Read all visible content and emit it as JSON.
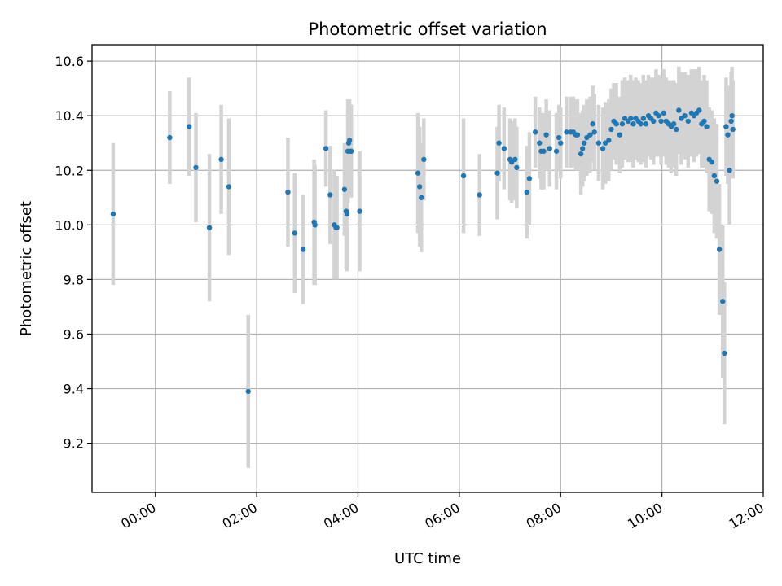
{
  "chart_data": {
    "type": "scatter",
    "title": "Photometric offset variation",
    "xlabel": "UTC time",
    "ylabel": "Photometric offset",
    "x_unit": "hours UTC",
    "xlim": [
      "-01:15",
      "12:00"
    ],
    "ylim": [
      9.02,
      10.66
    ],
    "x_ticks": [
      "00:00",
      "02:00",
      "04:00",
      "06:00",
      "08:00",
      "10:00",
      "12:00"
    ],
    "y_ticks": [
      "9.2",
      "9.4",
      "9.6",
      "9.8",
      "10.0",
      "10.2",
      "10.4",
      "10.6"
    ],
    "grid": true,
    "colors": {
      "points": "#1f77b4",
      "errorbars": "#d3d3d3"
    },
    "series": [
      {
        "x": [
          "-00:50",
          "00:17",
          "00:40",
          "00:48",
          "01:04",
          "01:18",
          "01:27",
          "01:50",
          "02:37",
          "02:45",
          "02:55",
          "03:08",
          "03:09",
          "03:22",
          "03:27",
          "03:32",
          "03:34",
          "03:35",
          "03:44",
          "03:46",
          "03:47",
          "03:48",
          "03:49",
          "03:50",
          "03:51",
          "03:52",
          "04:02",
          "05:11",
          "05:13",
          "05:15",
          "05:18",
          "06:05",
          "06:24",
          "06:45",
          "06:47",
          "06:53",
          "07:00",
          "07:02",
          "07:06",
          "07:08",
          "07:20",
          "07:23",
          "07:30",
          "07:35",
          "07:37",
          "07:40",
          "07:43",
          "07:47",
          "07:55",
          "07:58",
          "08:00",
          "08:07",
          "08:12",
          "08:15",
          "08:18",
          "08:20",
          "08:24",
          "08:26",
          "08:28",
          "08:31",
          "08:35",
          "08:38",
          "08:40",
          "08:45",
          "08:50",
          "08:53",
          "08:57",
          "09:00",
          "09:03",
          "09:06",
          "09:10",
          "09:13",
          "09:16",
          "09:20",
          "09:23",
          "09:26",
          "09:29",
          "09:32",
          "09:35",
          "09:38",
          "09:41",
          "09:44",
          "09:47",
          "09:50",
          "09:53",
          "09:56",
          "09:59",
          "10:02",
          "10:05",
          "10:08",
          "10:11",
          "10:14",
          "10:17",
          "10:20",
          "10:23",
          "10:27",
          "10:31",
          "10:35",
          "10:38",
          "10:41",
          "10:44",
          "10:47",
          "10:50",
          "10:53",
          "10:56",
          "10:59",
          "11:02",
          "11:05",
          "11:08",
          "11:12",
          "11:14",
          "11:16",
          "11:18",
          "11:20",
          "11:22",
          "11:23",
          "11:24"
        ],
        "y": [
          10.04,
          10.32,
          10.36,
          10.21,
          9.99,
          10.24,
          10.14,
          9.39,
          10.12,
          9.97,
          9.91,
          10.01,
          10.0,
          10.28,
          10.11,
          10.0,
          9.99,
          9.99,
          10.13,
          10.05,
          10.04,
          10.27,
          10.3,
          10.31,
          10.27,
          10.27,
          10.05,
          10.19,
          10.14,
          10.1,
          10.24,
          10.18,
          10.11,
          10.19,
          10.3,
          10.28,
          10.24,
          10.23,
          10.24,
          10.21,
          10.12,
          10.17,
          10.34,
          10.3,
          10.27,
          10.27,
          10.33,
          10.28,
          10.27,
          10.32,
          10.3,
          10.34,
          10.34,
          10.34,
          10.33,
          10.33,
          10.26,
          10.28,
          10.3,
          10.32,
          10.33,
          10.37,
          10.34,
          10.3,
          10.28,
          10.3,
          10.31,
          10.35,
          10.38,
          10.37,
          10.33,
          10.37,
          10.39,
          10.38,
          10.39,
          10.37,
          10.39,
          10.38,
          10.37,
          10.39,
          10.37,
          10.4,
          10.39,
          10.38,
          10.41,
          10.4,
          10.38,
          10.41,
          10.38,
          10.37,
          10.36,
          10.37,
          10.35,
          10.42,
          10.39,
          10.4,
          10.38,
          10.41,
          10.4,
          10.41,
          10.42,
          10.37,
          10.38,
          10.36,
          10.24,
          10.23,
          10.18,
          10.16,
          9.91,
          9.72,
          9.53,
          10.36,
          10.33,
          10.2,
          10.38,
          10.4,
          10.35
        ],
        "yerr": [
          0.26,
          0.17,
          0.18,
          0.2,
          0.27,
          0.2,
          0.25,
          0.28,
          0.2,
          0.22,
          0.2,
          0.23,
          0.22,
          0.14,
          0.18,
          0.2,
          0.19,
          0.19,
          0.17,
          0.21,
          0.21,
          0.19,
          0.16,
          0.15,
          0.17,
          0.17,
          0.22,
          0.22,
          0.22,
          0.2,
          0.15,
          0.21,
          0.15,
          0.17,
          0.14,
          0.15,
          0.15,
          0.15,
          0.15,
          0.15,
          0.17,
          0.17,
          0.13,
          0.13,
          0.14,
          0.14,
          0.13,
          0.14,
          0.14,
          0.12,
          0.13,
          0.13,
          0.13,
          0.13,
          0.13,
          0.13,
          0.15,
          0.14,
          0.14,
          0.14,
          0.14,
          0.14,
          0.14,
          0.14,
          0.15,
          0.15,
          0.15,
          0.15,
          0.14,
          0.15,
          0.14,
          0.16,
          0.15,
          0.15,
          0.16,
          0.16,
          0.15,
          0.15,
          0.15,
          0.16,
          0.16,
          0.15,
          0.15,
          0.16,
          0.16,
          0.15,
          0.16,
          0.16,
          0.16,
          0.16,
          0.17,
          0.16,
          0.17,
          0.16,
          0.17,
          0.16,
          0.17,
          0.16,
          0.17,
          0.16,
          0.16,
          0.16,
          0.17,
          0.17,
          0.19,
          0.19,
          0.21,
          0.21,
          0.24,
          0.28,
          0.26,
          0.18,
          0.18,
          0.2,
          0.18,
          0.18,
          0.18
        ]
      }
    ]
  }
}
